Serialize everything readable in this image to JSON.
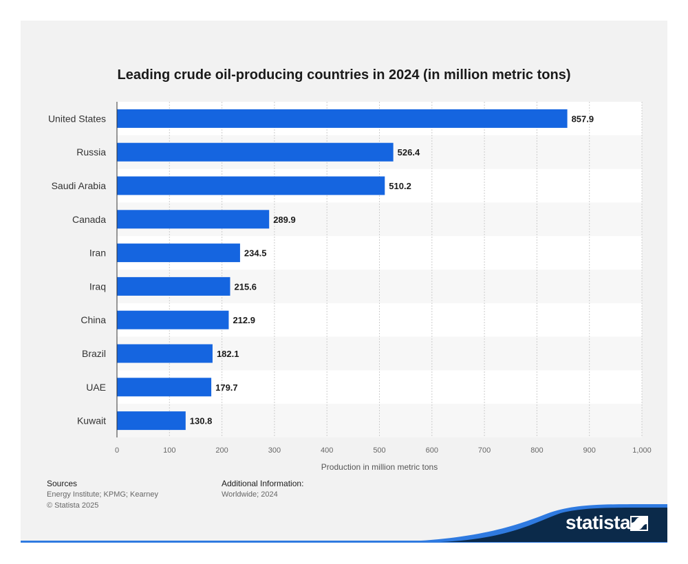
{
  "chart_data": {
    "type": "bar",
    "orientation": "horizontal",
    "title": "Leading crude oil-producing countries in 2024 (in million metric tons)",
    "xlabel": "Production in million metric tons",
    "ylabel": "",
    "categories": [
      "United States",
      "Russia",
      "Saudi Arabia",
      "Canada",
      "Iran",
      "Iraq",
      "China",
      "Brazil",
      "UAE",
      "Kuwait"
    ],
    "values": [
      857.9,
      526.4,
      510.2,
      289.9,
      234.5,
      215.6,
      212.9,
      182.1,
      179.7,
      130.8
    ],
    "value_labels": [
      "857.9",
      "526.4",
      "510.2",
      "289.9",
      "234.5",
      "215.6",
      "212.9",
      "182.1",
      "179.7",
      "130.8"
    ],
    "xlim": [
      0,
      1000
    ],
    "x_ticks": [
      "0",
      "100",
      "200",
      "300",
      "400",
      "500",
      "600",
      "700",
      "800",
      "900",
      "1,000"
    ],
    "grid": true,
    "bar_color": "#1565e0"
  },
  "footer": {
    "sources_heading": "Sources",
    "sources_text": "Energy Institute; KPMG; Kearney",
    "copyright": "© Statista 2025",
    "additional_heading": "Additional Information:",
    "additional_text": "Worldwide; 2024"
  },
  "brand": {
    "name": "statista",
    "color": "#0b2a4a"
  }
}
